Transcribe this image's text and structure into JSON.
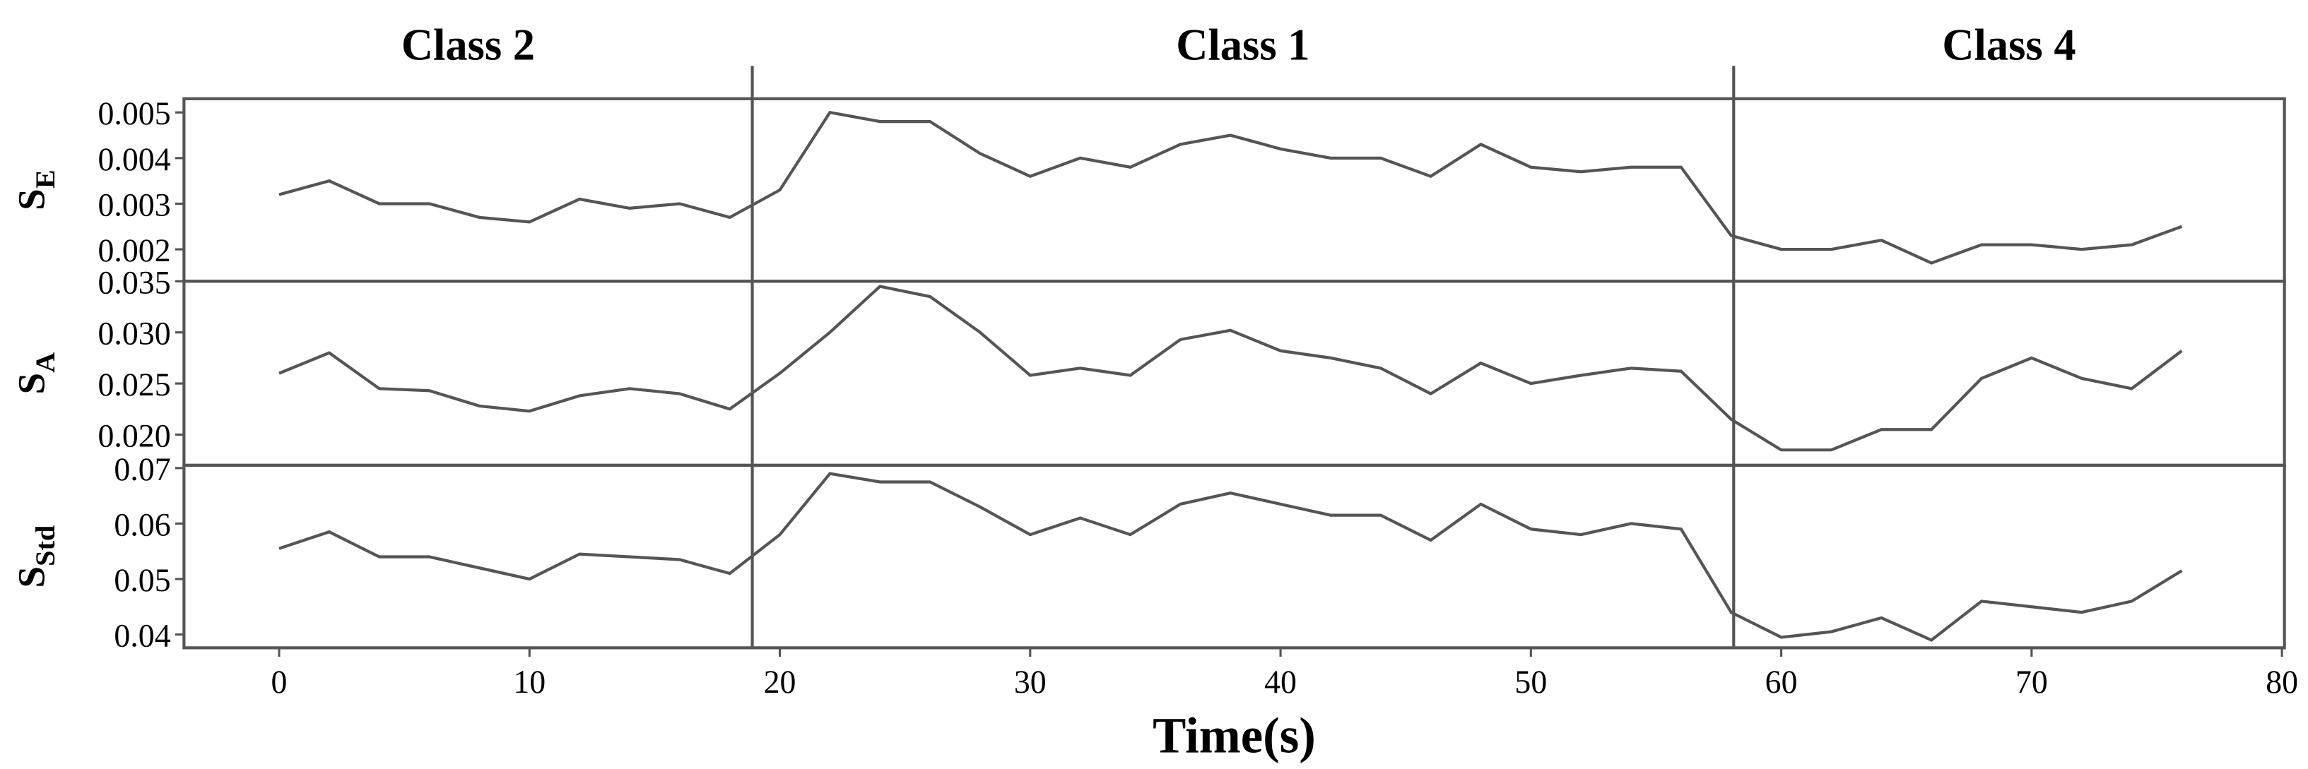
{
  "chart_data": [
    {
      "type": "line",
      "ylabel": "S",
      "ylabel_sub": "E",
      "color": "#555555",
      "class_labels": [
        "Class 2",
        "Class 1",
        "Class 4"
      ],
      "class_boundaries": [
        18.9,
        58.1
      ],
      "x": [
        0,
        2,
        4,
        6,
        8,
        10,
        12,
        14,
        16,
        18,
        20,
        22,
        24,
        26,
        28,
        30,
        32,
        34,
        36,
        38,
        40,
        42,
        44,
        46,
        48,
        50,
        52,
        54,
        56,
        58,
        60,
        62,
        64,
        66,
        68,
        70,
        72,
        74,
        76
      ],
      "values": [
        0.0032,
        0.0035,
        0.003,
        0.003,
        0.0027,
        0.0026,
        0.0031,
        0.0029,
        0.003,
        0.0027,
        0.0033,
        0.005,
        0.0048,
        0.0048,
        0.0041,
        0.0036,
        0.004,
        0.0038,
        0.0043,
        0.0045,
        0.0042,
        0.004,
        0.004,
        0.0036,
        0.0043,
        0.0038,
        0.0037,
        0.0038,
        0.0038,
        0.0023,
        0.002,
        0.002,
        0.0022,
        0.0017,
        0.0021,
        0.0021,
        0.002,
        0.0021,
        0.0025
      ],
      "ylim": [
        0.0013,
        0.0053
      ],
      "yticks": [
        0.002,
        0.003,
        0.004,
        0.005
      ]
    },
    {
      "type": "line",
      "ylabel": "S",
      "ylabel_sub": "A",
      "color": "#555555",
      "x": [
        0,
        2,
        4,
        6,
        8,
        10,
        12,
        14,
        16,
        18,
        20,
        22,
        24,
        26,
        28,
        30,
        32,
        34,
        36,
        38,
        40,
        42,
        44,
        46,
        48,
        50,
        52,
        54,
        56,
        58,
        60,
        62,
        64,
        66,
        68,
        70,
        72,
        74,
        76
      ],
      "values": [
        0.026,
        0.028,
        0.0245,
        0.0243,
        0.0228,
        0.0223,
        0.0238,
        0.0245,
        0.024,
        0.0225,
        0.026,
        0.03,
        0.0345,
        0.0335,
        0.03,
        0.0258,
        0.0265,
        0.0258,
        0.0293,
        0.0302,
        0.0282,
        0.0275,
        0.0265,
        0.024,
        0.027,
        0.025,
        0.0258,
        0.0265,
        0.0262,
        0.0215,
        0.0185,
        0.0185,
        0.0205,
        0.0205,
        0.0255,
        0.0275,
        0.0255,
        0.0245,
        0.0282
      ],
      "ylim": [
        0.017,
        0.035
      ],
      "yticks": [
        {
          "value": 0.02,
          "label": "0.020"
        },
        0.025,
        {
          "value": 0.03,
          "label": "0.030"
        },
        0.035
      ]
    },
    {
      "type": "line",
      "ylabel": "S",
      "ylabel_sub": "Std",
      "color": "#555555",
      "x": [
        0,
        2,
        4,
        6,
        8,
        10,
        12,
        14,
        16,
        18,
        20,
        22,
        24,
        26,
        28,
        30,
        32,
        34,
        36,
        38,
        40,
        42,
        44,
        46,
        48,
        50,
        52,
        54,
        56,
        58,
        60,
        62,
        64,
        66,
        68,
        70,
        72,
        74,
        76
      ],
      "values": [
        0.0555,
        0.0585,
        0.054,
        0.054,
        0.052,
        0.05,
        0.0545,
        0.054,
        0.0535,
        0.051,
        0.058,
        0.069,
        0.0675,
        0.0675,
        0.063,
        0.058,
        0.061,
        0.058,
        0.0635,
        0.0655,
        0.0635,
        0.0615,
        0.0615,
        0.057,
        0.0635,
        0.059,
        0.058,
        0.06,
        0.059,
        0.044,
        0.0395,
        0.0405,
        0.043,
        0.039,
        0.046,
        0.045,
        0.044,
        0.046,
        0.0515
      ],
      "ylim": [
        0.0376,
        0.0705
      ],
      "yticks": [
        0.04,
        0.05,
        0.06,
        0.07
      ],
      "xlabel": "Time(s)",
      "xlim": [
        -3.8,
        80.1
      ],
      "xticks": [
        0,
        10,
        20,
        30,
        40,
        50,
        60,
        70,
        80
      ]
    }
  ]
}
